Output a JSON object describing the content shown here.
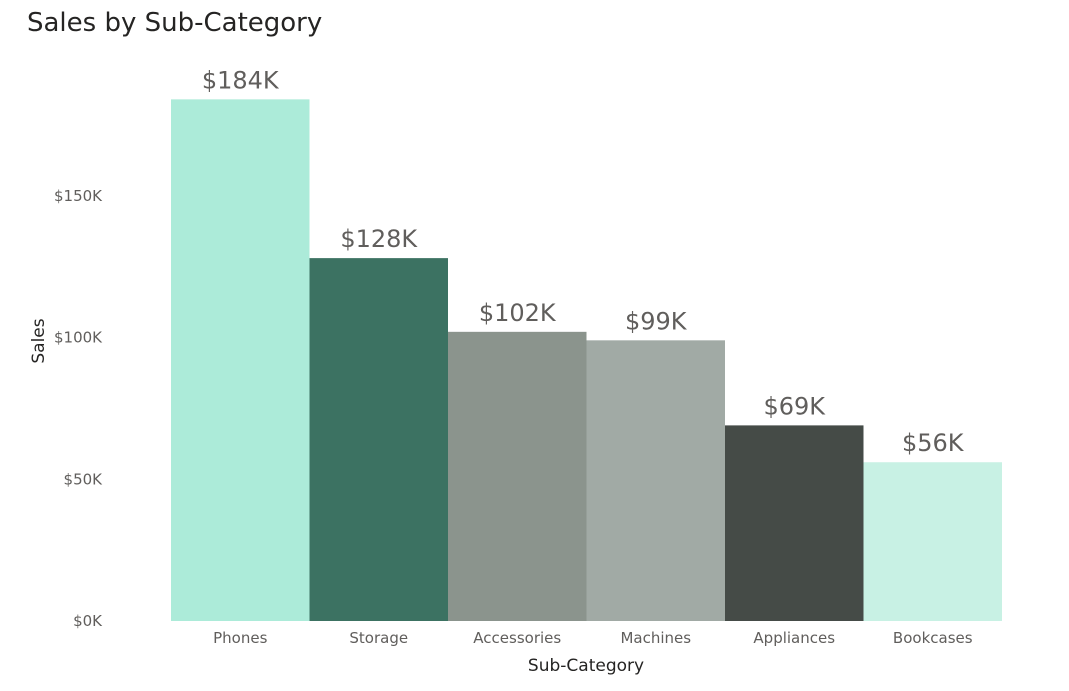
{
  "chart_data": {
    "type": "bar",
    "title": "Sales by Sub-Category",
    "xlabel": "Sub-Category",
    "ylabel": "Sales",
    "categories": [
      "Phones",
      "Storage",
      "Accessories",
      "Machines",
      "Appliances",
      "Bookcases"
    ],
    "values": [
      184000,
      128000,
      102000,
      99000,
      69000,
      56000
    ],
    "data_labels": [
      "$184K",
      "$128K",
      "$102K",
      "$99K",
      "$69K",
      "$56K"
    ],
    "colors": [
      "#acebd9",
      "#3c7262",
      "#8b948d",
      "#a1aaa5",
      "#454b47",
      "#c8f1e4"
    ],
    "yticks": [
      0,
      50000,
      100000,
      150000
    ],
    "ytick_labels": [
      "$0K",
      "$50K",
      "$100K",
      "$150K"
    ],
    "ylim": [
      0,
      200000
    ],
    "grid": false,
    "legend": "none"
  }
}
